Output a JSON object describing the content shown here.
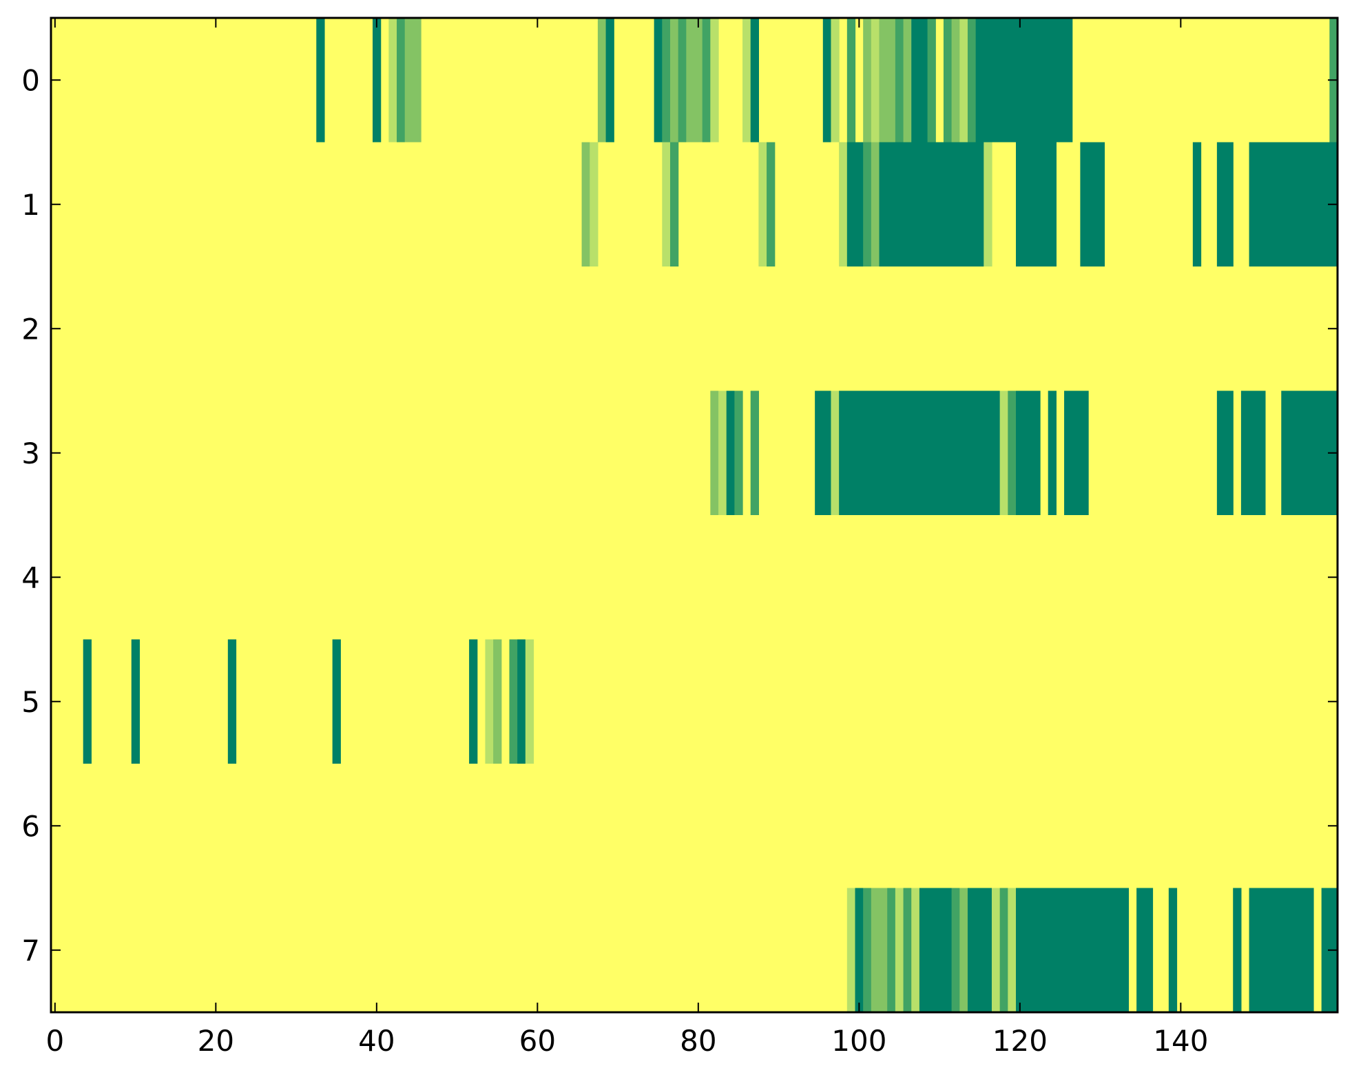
{
  "chart_data": {
    "type": "heatmap",
    "title": "",
    "xlabel": "",
    "ylabel": "",
    "grid": false,
    "legend": "none",
    "n_columns": 160,
    "rows": [
      0,
      1,
      2,
      3,
      4,
      5,
      6,
      7
    ],
    "xlim": [
      -0.5,
      159.5
    ],
    "ylim": [
      7.5,
      -0.5
    ],
    "x_ticks": [
      "0",
      "20",
      "40",
      "60",
      "80",
      "100",
      "120",
      "140"
    ],
    "y_ticks": [
      "0",
      "1",
      "2",
      "3",
      "4",
      "5",
      "6",
      "7"
    ],
    "background_value": 0,
    "level_colors": [
      "#ffff66",
      "#b8e06a",
      "#84c364",
      "#41a364",
      "#008066"
    ],
    "runs": [
      {
        "row": 0,
        "segments": [
          [
            33,
            33,
            4
          ],
          [
            40,
            40,
            4
          ],
          [
            42,
            42,
            1
          ],
          [
            43,
            43,
            3
          ],
          [
            44,
            45,
            2
          ],
          [
            68,
            68,
            2
          ],
          [
            69,
            69,
            4
          ],
          [
            75,
            75,
            4
          ],
          [
            76,
            76,
            3
          ],
          [
            77,
            77,
            2
          ],
          [
            78,
            78,
            3
          ],
          [
            79,
            80,
            2
          ],
          [
            81,
            81,
            3
          ],
          [
            82,
            82,
            1
          ],
          [
            86,
            86,
            1
          ],
          [
            87,
            87,
            4
          ],
          [
            96,
            96,
            4
          ],
          [
            97,
            97,
            1
          ],
          [
            99,
            99,
            3
          ],
          [
            101,
            101,
            2
          ],
          [
            102,
            102,
            1
          ],
          [
            103,
            104,
            2
          ],
          [
            105,
            105,
            3
          ],
          [
            106,
            106,
            2
          ],
          [
            107,
            108,
            4
          ],
          [
            109,
            109,
            3
          ],
          [
            111,
            111,
            3
          ],
          [
            112,
            112,
            2
          ],
          [
            113,
            113,
            1
          ],
          [
            114,
            114,
            3
          ],
          [
            115,
            126,
            4
          ],
          [
            159,
            159,
            3
          ]
        ]
      },
      {
        "row": 1,
        "segments": [
          [
            66,
            66,
            2
          ],
          [
            67,
            67,
            1
          ],
          [
            76,
            76,
            1
          ],
          [
            77,
            77,
            3
          ],
          [
            88,
            88,
            1
          ],
          [
            89,
            89,
            3
          ],
          [
            98,
            98,
            1
          ],
          [
            99,
            100,
            4
          ],
          [
            101,
            101,
            3
          ],
          [
            102,
            102,
            2
          ],
          [
            103,
            115,
            4
          ],
          [
            116,
            116,
            1
          ],
          [
            120,
            124,
            4
          ],
          [
            128,
            130,
            4
          ],
          [
            142,
            142,
            4
          ],
          [
            145,
            146,
            4
          ],
          [
            149,
            159,
            4
          ]
        ]
      },
      {
        "row": 3,
        "segments": [
          [
            82,
            82,
            2
          ],
          [
            83,
            83,
            1
          ],
          [
            84,
            84,
            4
          ],
          [
            85,
            85,
            3
          ],
          [
            87,
            87,
            3
          ],
          [
            95,
            96,
            4
          ],
          [
            97,
            97,
            1
          ],
          [
            98,
            117,
            4
          ],
          [
            118,
            118,
            1
          ],
          [
            119,
            119,
            3
          ],
          [
            120,
            122,
            4
          ],
          [
            124,
            124,
            4
          ],
          [
            126,
            128,
            4
          ],
          [
            145,
            146,
            4
          ],
          [
            148,
            150,
            4
          ],
          [
            153,
            159,
            4
          ]
        ]
      },
      {
        "row": 5,
        "segments": [
          [
            4,
            4,
            4
          ],
          [
            10,
            10,
            4
          ],
          [
            22,
            22,
            4
          ],
          [
            35,
            35,
            4
          ],
          [
            52,
            52,
            4
          ],
          [
            54,
            54,
            1
          ],
          [
            55,
            55,
            2
          ],
          [
            57,
            57,
            3
          ],
          [
            58,
            58,
            4
          ],
          [
            59,
            59,
            1
          ]
        ]
      },
      {
        "row": 7,
        "segments": [
          [
            99,
            99,
            1
          ],
          [
            100,
            100,
            4
          ],
          [
            101,
            101,
            3
          ],
          [
            102,
            103,
            2
          ],
          [
            104,
            104,
            3
          ],
          [
            105,
            105,
            1
          ],
          [
            106,
            106,
            3
          ],
          [
            107,
            107,
            1
          ],
          [
            108,
            111,
            4
          ],
          [
            112,
            112,
            3
          ],
          [
            113,
            113,
            2
          ],
          [
            114,
            116,
            4
          ],
          [
            117,
            117,
            1
          ],
          [
            118,
            118,
            3
          ],
          [
            119,
            119,
            1
          ],
          [
            120,
            133,
            4
          ],
          [
            135,
            136,
            4
          ],
          [
            139,
            139,
            4
          ],
          [
            147,
            147,
            4
          ],
          [
            149,
            156,
            4
          ],
          [
            158,
            159,
            4
          ]
        ]
      }
    ]
  }
}
